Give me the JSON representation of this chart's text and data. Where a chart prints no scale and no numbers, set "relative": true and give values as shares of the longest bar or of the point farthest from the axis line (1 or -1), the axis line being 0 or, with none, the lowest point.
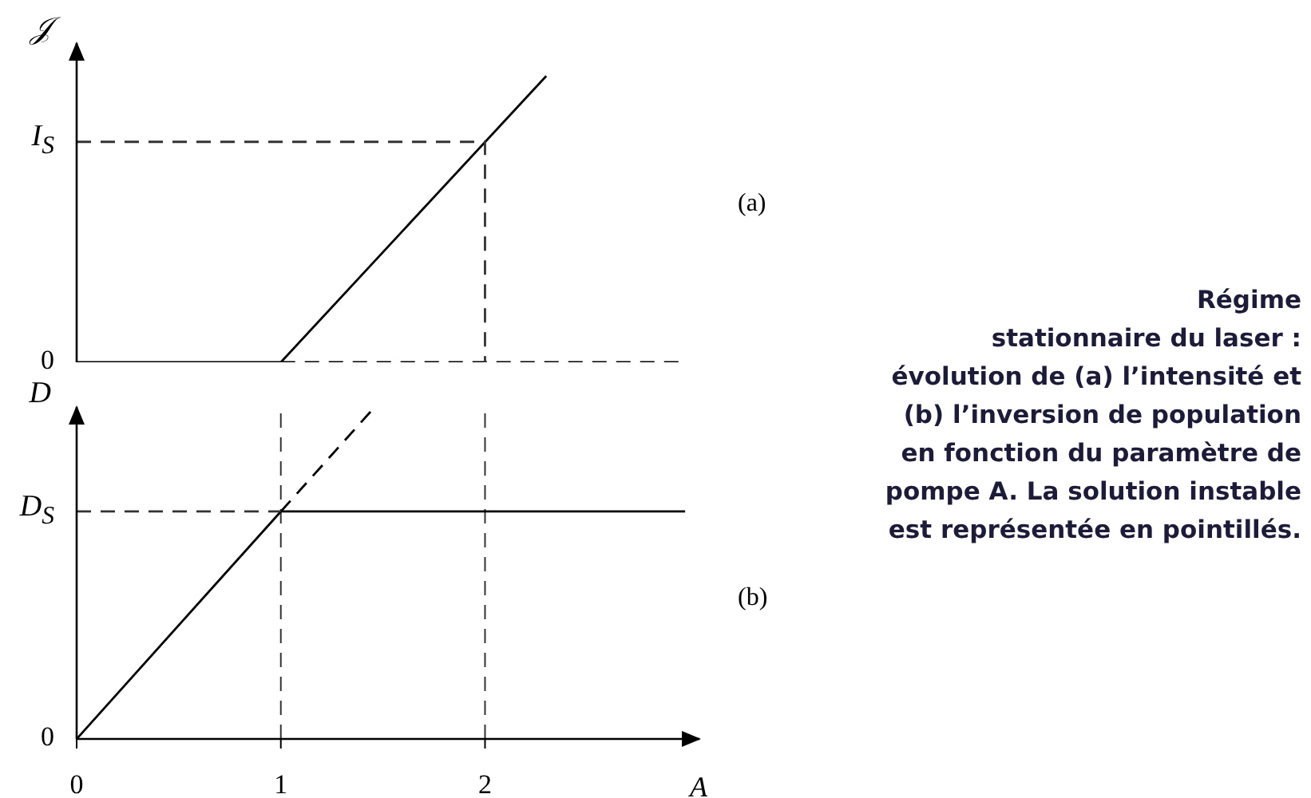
{
  "chart_data": [
    {
      "type": "line",
      "ylabel": "𝒥",
      "relative": true,
      "xlim": [
        0,
        2.95
      ],
      "xticks": [
        1,
        2
      ],
      "tick_labels": false,
      "series": [
        {
          "color": "#000000",
          "x": [
            0,
            1,
            2.3
          ],
          "values": [
            0,
            0,
            1
          ],
          "line_style": "solid"
        },
        {
          "color": "#000000",
          "x": [
            1,
            2.95
          ],
          "values": [
            0,
            0
          ],
          "line_style": "dashed"
        },
        {
          "color": "#333333",
          "x": [
            0,
            2,
            2
          ],
          "values": [
            0.77,
            0.77,
            0
          ],
          "line_style": "dashed"
        }
      ],
      "annotations": [
        "(a)",
        "0",
        "I$_{S}$"
      ]
    },
    {
      "type": "line",
      "xlabel": "A",
      "ylabel": "D",
      "relative": true,
      "xlim": [
        0,
        3.05
      ],
      "xticks": [
        0,
        1,
        2
      ],
      "tick_labels": "x",
      "series": [
        {
          "color": "#000000",
          "x": [
            0,
            1,
            2.98
          ],
          "values": [
            0,
            0.69,
            0.69
          ],
          "line_style": "solid"
        },
        {
          "color": "#000000",
          "x": [
            1,
            1.45
          ],
          "values": [
            0.69,
            1
          ],
          "line_style": "dashed"
        },
        {
          "color": "#333333",
          "x": [
            0,
            1
          ],
          "values": [
            0.69,
            0.69
          ],
          "line_style": "dashed"
        }
      ],
      "ref_lines": [
        {
          "axis": "x",
          "value": 1,
          "line_style": "dashed",
          "color": "#333333"
        },
        {
          "axis": "x",
          "value": 2,
          "line_style": "dashed",
          "color": "#333333"
        }
      ],
      "annotations": [
        "(b)",
        "Régime\nstationnaire du laser :\névolution de (a) l’intensité et\n(b) l’inversion de population\nen fonction du paramètre de\npompe A. La solution instable\nest représentée en pointillés.",
        "0",
        "D$_{S}$"
      ]
    }
  ]
}
